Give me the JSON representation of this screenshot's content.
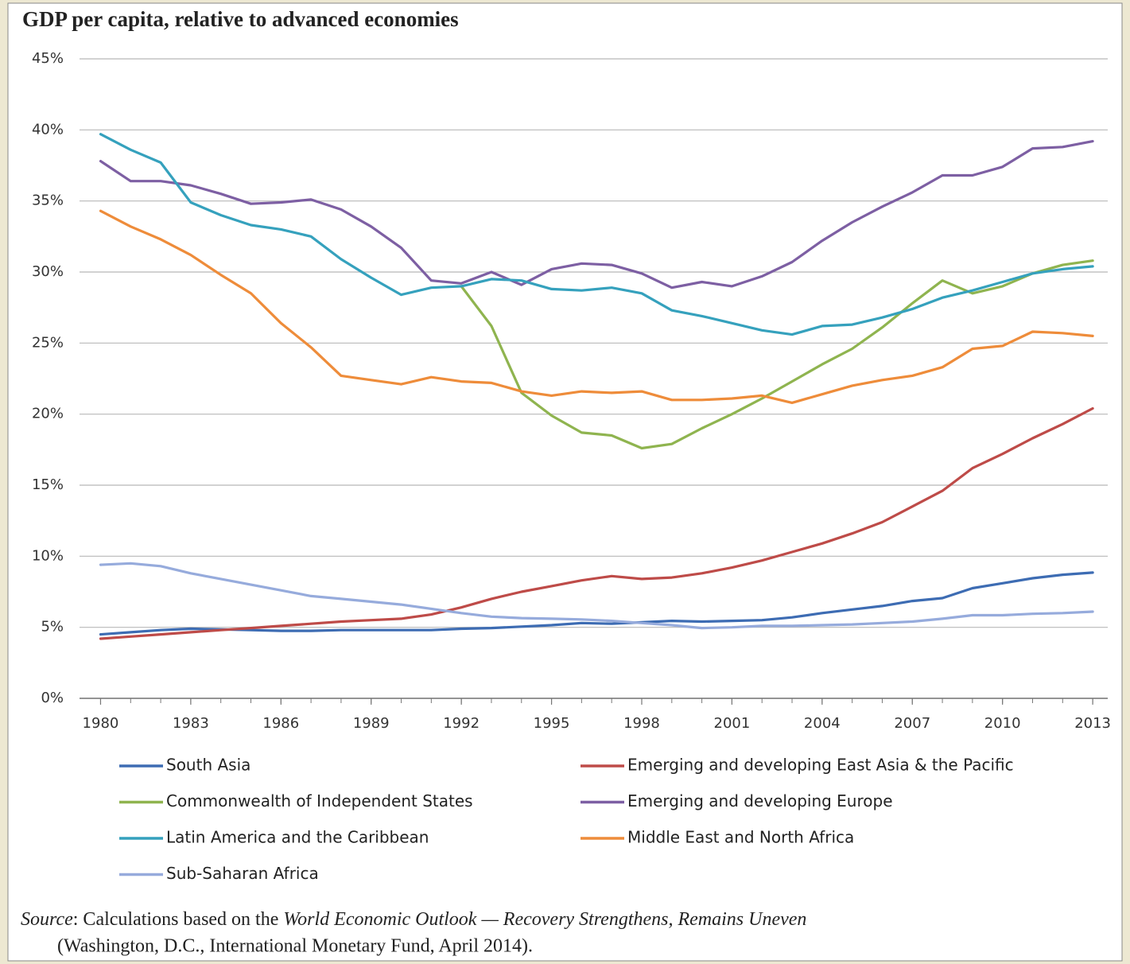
{
  "chart_data": {
    "type": "line",
    "title": "GDP per capita, relative to advanced economies",
    "x": [
      1980,
      1981,
      1982,
      1983,
      1984,
      1985,
      1986,
      1987,
      1988,
      1989,
      1990,
      1991,
      1992,
      1993,
      1994,
      1995,
      1996,
      1997,
      1998,
      1999,
      2000,
      2001,
      2002,
      2003,
      2004,
      2005,
      2006,
      2007,
      2008,
      2009,
      2010,
      2011,
      2012,
      2013
    ],
    "xlim": [
      1979.3,
      2013.5
    ],
    "xticks": [
      1980,
      1983,
      1986,
      1989,
      1992,
      1995,
      1998,
      2001,
      2004,
      2007,
      2010,
      2013
    ],
    "ylim": [
      0,
      45
    ],
    "yticks": [
      {
        "value": 0,
        "label": "0%"
      },
      {
        "value": 5,
        "label": "5%"
      },
      {
        "value": 10,
        "label": "10%"
      },
      {
        "value": 15,
        "label": "15%"
      },
      {
        "value": 20,
        "label": "20%"
      },
      {
        "value": 25,
        "label": "25%"
      },
      {
        "value": 30,
        "label": "30%"
      },
      {
        "value": 35,
        "label": "35%"
      },
      {
        "value": 40,
        "label": "40%"
      },
      {
        "value": 45,
        "label": "45%"
      }
    ],
    "grid": true,
    "series": [
      {
        "name": "South Asia",
        "color": "#3d6cb3",
        "values": [
          4.5,
          4.65,
          4.8,
          4.9,
          4.85,
          4.8,
          4.75,
          4.75,
          4.8,
          4.8,
          4.8,
          4.8,
          4.9,
          4.95,
          5.05,
          5.15,
          5.3,
          5.25,
          5.35,
          5.45,
          5.4,
          5.45,
          5.5,
          5.7,
          6.0,
          6.25,
          6.5,
          6.85,
          7.05,
          7.75,
          8.1,
          8.45,
          8.7,
          8.85
        ]
      },
      {
        "name": "Emerging and developing East Asia & the Pacific",
        "color": "#be4b48",
        "values": [
          4.2,
          4.35,
          4.5,
          4.65,
          4.8,
          4.95,
          5.1,
          5.25,
          5.4,
          5.5,
          5.6,
          5.9,
          6.4,
          7.0,
          7.5,
          7.9,
          8.3,
          8.6,
          8.4,
          8.5,
          8.8,
          9.2,
          9.7,
          10.3,
          10.9,
          11.6,
          12.4,
          13.5,
          14.6,
          16.2,
          17.2,
          18.3,
          19.3,
          20.4
        ]
      },
      {
        "name": "Commonwealth of Independent States",
        "color": "#8fb44f",
        "values": [
          null,
          null,
          null,
          null,
          null,
          null,
          null,
          null,
          null,
          null,
          null,
          null,
          29.0,
          26.2,
          21.5,
          19.9,
          18.7,
          18.5,
          17.6,
          17.9,
          19.0,
          20.0,
          21.1,
          22.3,
          23.5,
          24.6,
          26.1,
          27.8,
          29.4,
          28.5,
          29.0,
          29.9,
          30.5,
          30.8
        ]
      },
      {
        "name": "Emerging and developing Europe",
        "color": "#7d5fa3",
        "values": [
          37.8,
          36.4,
          36.4,
          36.1,
          35.5,
          34.8,
          34.9,
          35.1,
          34.4,
          33.2,
          31.7,
          29.4,
          29.2,
          30.0,
          29.1,
          30.2,
          30.6,
          30.5,
          29.9,
          28.9,
          29.3,
          29.0,
          29.7,
          30.7,
          32.2,
          33.5,
          34.6,
          35.6,
          36.8,
          36.8,
          37.4,
          38.7,
          38.8,
          39.2
        ]
      },
      {
        "name": "Latin America and the Caribbean",
        "color": "#35a1bd",
        "values": [
          39.7,
          38.6,
          37.7,
          34.9,
          34.0,
          33.3,
          33.0,
          32.5,
          30.9,
          29.6,
          28.4,
          28.9,
          29.0,
          29.5,
          29.4,
          28.8,
          28.7,
          28.9,
          28.5,
          27.3,
          26.9,
          26.4,
          25.9,
          25.6,
          26.2,
          26.3,
          26.8,
          27.4,
          28.2,
          28.7,
          29.3,
          29.9,
          30.2,
          30.4
        ]
      },
      {
        "name": "Middle East and North Africa",
        "color": "#ee8c3a",
        "values": [
          34.3,
          33.2,
          32.3,
          31.2,
          29.8,
          28.5,
          26.4,
          24.7,
          22.7,
          22.4,
          22.1,
          22.6,
          22.3,
          22.2,
          21.6,
          21.3,
          21.6,
          21.5,
          21.6,
          21.0,
          21.0,
          21.1,
          21.3,
          20.8,
          21.4,
          22.0,
          22.4,
          22.7,
          23.3,
          24.6,
          24.8,
          25.8,
          25.7,
          25.5
        ]
      },
      {
        "name": "Sub-Saharan Africa",
        "color": "#96abdc",
        "values": [
          9.4,
          9.5,
          9.3,
          8.8,
          8.4,
          8.0,
          7.6,
          7.2,
          7.0,
          6.8,
          6.6,
          6.3,
          6.0,
          5.75,
          5.65,
          5.6,
          5.55,
          5.45,
          5.3,
          5.15,
          4.95,
          5.0,
          5.1,
          5.1,
          5.15,
          5.2,
          5.3,
          5.4,
          5.6,
          5.85,
          5.85,
          5.95,
          6.0,
          6.1
        ]
      }
    ],
    "note": {
      "label": "Source",
      "text": ": Calculations based on the ",
      "report": "World Economic Outlook — Recovery Strengthens, Remains Uneven",
      "rest": "(Washington, D.C., International Monetary Fund, April 2014)."
    }
  }
}
